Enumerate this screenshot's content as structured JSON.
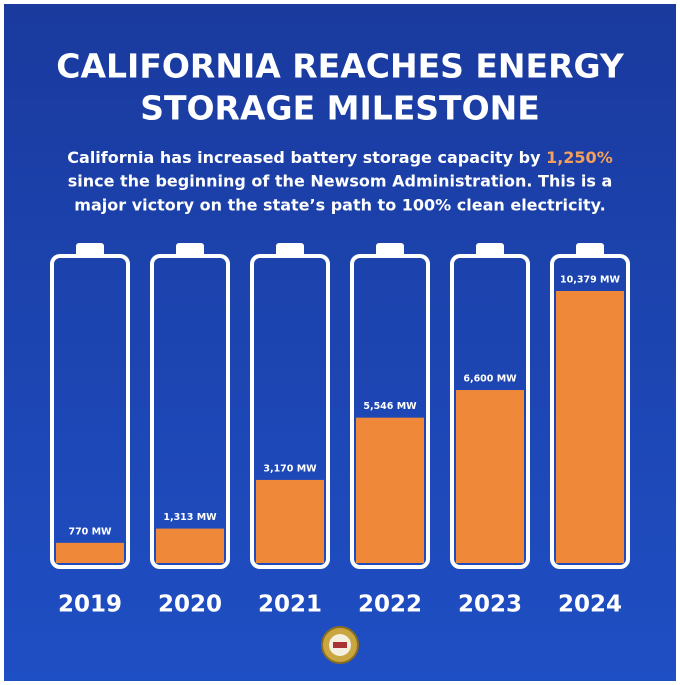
{
  "chart_data": {
    "type": "bar",
    "title": [
      "CALIFORNIA REACHES ENERGY",
      "STORAGE MILESTONE"
    ],
    "subtitle": [
      "California has increased battery storage capacity by",
      "1,250%",
      "since the beginning of the Newsom Administration. This is a",
      "major victory on the state’s path to 100% clean electricity."
    ],
    "categories": [
      "2019",
      "2020",
      "2021",
      "2022",
      "2023",
      "2024"
    ],
    "values": [
      770,
      1313,
      3170,
      5546,
      6600,
      10379
    ],
    "value_labels": [
      "770 MW",
      "1,313 MW",
      "3,170 MW",
      "5,546 MW",
      "6,600 MW",
      "10,379 MW"
    ],
    "color": "#f0883a",
    "highlight_color": "#f5a05a"
  }
}
